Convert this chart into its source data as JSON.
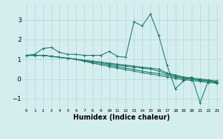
{
  "bg_color": "#d4eeee",
  "grid_color": "#b8d8d8",
  "line_color": "#1a7a6a",
  "marker": "+",
  "markersize": 3,
  "linewidth": 0.8,
  "xlabel": "Humidex (Indice chaleur)",
  "xlabel_fontsize": 7,
  "xlabel_fontweight": "bold",
  "ytick_labels": [
    "-1",
    "0",
    "1",
    "2",
    "3"
  ],
  "yticks": [
    -1,
    0,
    1,
    2,
    3
  ],
  "xticks": [
    0,
    1,
    2,
    3,
    4,
    5,
    6,
    7,
    8,
    9,
    10,
    11,
    12,
    13,
    14,
    15,
    16,
    17,
    18,
    19,
    20,
    21,
    22,
    23
  ],
  "xlim": [
    -0.5,
    23.5
  ],
  "ylim": [
    -1.5,
    3.8
  ],
  "series": [
    [
      1.2,
      1.25,
      1.55,
      1.6,
      1.35,
      1.25,
      1.25,
      1.2,
      1.2,
      1.2,
      1.4,
      1.15,
      1.1,
      2.9,
      2.7,
      3.3,
      2.2,
      0.7,
      -0.5,
      -0.1,
      0.1,
      -1.2,
      -0.1,
      -0.2
    ],
    [
      1.2,
      1.2,
      1.2,
      1.15,
      1.1,
      1.05,
      1.0,
      0.95,
      0.9,
      0.85,
      0.8,
      0.75,
      0.7,
      0.65,
      0.6,
      0.55,
      0.5,
      0.3,
      0.2,
      0.1,
      0.05,
      0.0,
      -0.05,
      -0.1
    ],
    [
      1.2,
      1.2,
      1.2,
      1.15,
      1.1,
      1.05,
      1.0,
      0.95,
      0.9,
      0.85,
      0.75,
      0.7,
      0.65,
      0.6,
      0.55,
      0.5,
      0.4,
      0.25,
      0.15,
      0.05,
      0.0,
      -0.05,
      -0.1,
      -0.15
    ],
    [
      1.2,
      1.2,
      1.2,
      1.15,
      1.1,
      1.05,
      1.0,
      0.92,
      0.85,
      0.78,
      0.7,
      0.62,
      0.55,
      0.48,
      0.4,
      0.32,
      0.28,
      0.18,
      0.1,
      0.03,
      -0.02,
      -0.07,
      -0.12,
      -0.18
    ],
    [
      1.2,
      1.2,
      1.2,
      1.15,
      1.1,
      1.05,
      1.0,
      0.9,
      0.8,
      0.72,
      0.63,
      0.55,
      0.47,
      0.4,
      0.32,
      0.25,
      0.18,
      0.1,
      0.03,
      -0.04,
      -0.08,
      -0.13,
      -0.18,
      -0.22
    ]
  ]
}
